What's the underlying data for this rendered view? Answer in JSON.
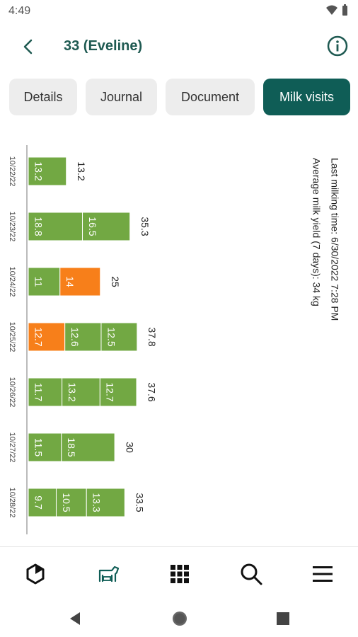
{
  "status_bar": {
    "time": "4:49"
  },
  "header": {
    "title": "33 (Eveline)"
  },
  "tabs": [
    {
      "label": "Details"
    },
    {
      "label": "Journal"
    },
    {
      "label": "Document"
    },
    {
      "label": "Milk visits"
    }
  ],
  "colors": {
    "primary": "#0f5d56",
    "green_bar": "#72a843",
    "orange_bar": "#f77f1a"
  },
  "chart_data": {
    "type": "bar",
    "orientation": "horizontal-stacked",
    "info_lines": [
      "Last milking time: 6/30/2022 7:28 PM",
      "Average milk yield (7 days): 34 kg"
    ],
    "rows": [
      {
        "date": "10/22/22",
        "segments": [
          {
            "value": 13.2,
            "label": "13.2",
            "color": "green"
          }
        ],
        "total": "13.2"
      },
      {
        "date": "10/23/22",
        "segments": [
          {
            "value": 18.8,
            "label": "18.8",
            "color": "green"
          },
          {
            "value": 16.5,
            "label": "16.5",
            "color": "green"
          }
        ],
        "total": "35.3"
      },
      {
        "date": "10/24/22",
        "segments": [
          {
            "value": 11,
            "label": "11",
            "color": "green"
          },
          {
            "value": 14,
            "label": "14",
            "color": "orange"
          }
        ],
        "total": "25"
      },
      {
        "date": "10/25/22",
        "segments": [
          {
            "value": 12.7,
            "label": "12.7",
            "color": "orange"
          },
          {
            "value": 12.6,
            "label": "12.6",
            "color": "green"
          },
          {
            "value": 12.5,
            "label": "12.5",
            "color": "green"
          }
        ],
        "total": "37.8"
      },
      {
        "date": "10/26/22",
        "segments": [
          {
            "value": 11.7,
            "label": "11.7",
            "color": "green"
          },
          {
            "value": 13.2,
            "label": "13.2",
            "color": "green"
          },
          {
            "value": 12.7,
            "label": "12.7",
            "color": "green"
          }
        ],
        "total": "37.6"
      },
      {
        "date": "10/27/22",
        "segments": [
          {
            "value": 11.5,
            "label": "11.5",
            "color": "green"
          },
          {
            "value": 18.5,
            "label": "18.5",
            "color": "green"
          }
        ],
        "total": "30"
      },
      {
        "date": "10/28/22",
        "segments": [
          {
            "value": 9.7,
            "label": "9.7",
            "color": "green"
          },
          {
            "value": 10.5,
            "label": "10.5",
            "color": "green"
          },
          {
            "value": 13.3,
            "label": "13.3",
            "color": "green"
          }
        ],
        "total": "33.5"
      }
    ]
  },
  "bottom_nav": [
    {
      "icon": "hexagon-icon"
    },
    {
      "icon": "cow-icon"
    },
    {
      "icon": "grid-icon"
    },
    {
      "icon": "search-icon"
    },
    {
      "icon": "menu-icon"
    }
  ],
  "system_nav": [
    {
      "icon": "back-triangle-icon"
    },
    {
      "icon": "home-circle-icon"
    },
    {
      "icon": "recents-square-icon"
    }
  ]
}
